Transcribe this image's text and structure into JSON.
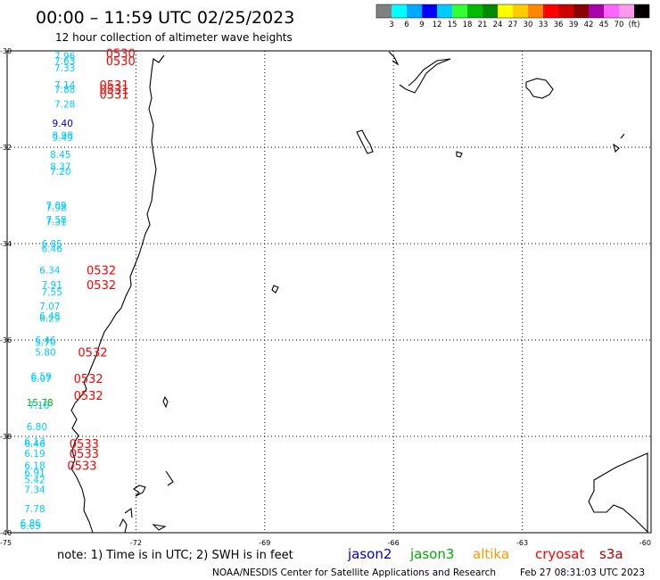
{
  "chart_data": {
    "type": "scatter",
    "title": "00:00 – 11:59 UTC 02/25/2023",
    "subtitle": "12 hour collection of altimeter wave heights",
    "xlim": [
      -75,
      -60
    ],
    "ylim": [
      -40,
      -30
    ],
    "x_ticks": [
      "-75",
      "-72",
      "-69",
      "-66",
      "-63",
      "-60"
    ],
    "y_ticks": [
      "-30",
      "-32",
      "-34",
      "-36",
      "-38",
      "-40"
    ],
    "x_tick_values": [
      -75,
      -72,
      -69,
      -66,
      -63,
      -60
    ],
    "y_tick_values": [
      -30,
      -32,
      -34,
      -36,
      -38,
      -40
    ],
    "grid": true,
    "colorbar": {
      "colors": [
        "#808080",
        "#00ffff",
        "#00aaff",
        "#0000ff",
        "#00ccff",
        "#33ff33",
        "#00bb00",
        "#008800",
        "#ffff00",
        "#ffcc00",
        "#ff8800",
        "#ff0000",
        "#cc0000",
        "#880000",
        "#aa00aa",
        "#ff66ff",
        "#ff99ee",
        "#000000"
      ],
      "labels": [
        "3",
        "6",
        "9",
        "12",
        "15",
        "18",
        "21",
        "24",
        "27",
        "30",
        "33",
        "36",
        "39",
        "42",
        "45",
        "70",
        "(ft)"
      ]
    },
    "series": [
      {
        "name": "cryosat",
        "color": "#00ccff",
        "points": [
          {
            "x": -73.9,
            "y": -30.1,
            "label": "7.96"
          },
          {
            "x": -73.9,
            "y": -30.2,
            "label": "7.63"
          },
          {
            "x": -73.9,
            "y": -30.35,
            "label": "7.33"
          },
          {
            "x": -73.9,
            "y": -30.7,
            "label": "7.14"
          },
          {
            "x": -73.9,
            "y": -30.8,
            "label": "7.88"
          },
          {
            "x": -73.9,
            "y": -31.1,
            "label": "7.28"
          },
          {
            "x": -73.95,
            "y": -31.75,
            "label": "8.98"
          },
          {
            "x": -73.95,
            "y": -31.8,
            "label": "9.49"
          },
          {
            "x": -74.0,
            "y": -32.15,
            "label": "8.45"
          },
          {
            "x": -74.0,
            "y": -32.4,
            "label": "8.37"
          },
          {
            "x": -74.0,
            "y": -32.5,
            "label": "7.20"
          },
          {
            "x": -74.1,
            "y": -33.2,
            "label": "7.89"
          },
          {
            "x": -74.1,
            "y": -33.25,
            "label": "7.98"
          },
          {
            "x": -74.1,
            "y": -33.5,
            "label": "7.58"
          },
          {
            "x": -74.1,
            "y": -33.55,
            "label": "7.31"
          },
          {
            "x": -74.2,
            "y": -34.0,
            "label": "6.85"
          },
          {
            "x": -74.2,
            "y": -34.1,
            "label": "6.46"
          },
          {
            "x": -74.25,
            "y": -34.55,
            "label": "6.34"
          },
          {
            "x": -74.2,
            "y": -34.85,
            "label": "7.91"
          },
          {
            "x": -74.2,
            "y": -35.0,
            "label": "7.55"
          },
          {
            "x": -74.25,
            "y": -35.3,
            "label": "7.07"
          },
          {
            "x": -74.25,
            "y": -35.5,
            "label": "6.48"
          },
          {
            "x": -74.25,
            "y": -35.55,
            "label": "6.29"
          },
          {
            "x": -74.35,
            "y": -36.0,
            "label": "6.46"
          },
          {
            "x": -74.35,
            "y": -36.05,
            "label": "5.70"
          },
          {
            "x": -74.35,
            "y": -36.25,
            "label": "5.80"
          },
          {
            "x": -74.45,
            "y": -36.75,
            "label": "6.59"
          },
          {
            "x": -74.45,
            "y": -36.8,
            "label": "6.07"
          },
          {
            "x": -74.5,
            "y": -37.35,
            "label": "7.16"
          },
          {
            "x": -74.55,
            "y": -37.8,
            "label": "6.80"
          },
          {
            "x": -74.6,
            "y": -38.1,
            "label": "6.13"
          },
          {
            "x": -74.6,
            "y": -38.15,
            "label": "6.46"
          },
          {
            "x": -74.6,
            "y": -38.35,
            "label": "6.19"
          },
          {
            "x": -74.6,
            "y": -38.6,
            "label": "6.18"
          },
          {
            "x": -74.6,
            "y": -38.75,
            "label": "6.91"
          },
          {
            "x": -74.6,
            "y": -38.9,
            "label": "5.42"
          },
          {
            "x": -74.6,
            "y": -39.1,
            "label": "7.34"
          },
          {
            "x": -74.6,
            "y": -39.5,
            "label": "7.78"
          },
          {
            "x": -74.7,
            "y": -39.8,
            "label": "6.86"
          },
          {
            "x": -74.7,
            "y": -39.85,
            "label": "6.65"
          }
        ]
      },
      {
        "name": "jason2",
        "color": "#0000cc",
        "points": [
          {
            "x": -73.95,
            "y": -31.5,
            "label": "9.40"
          }
        ]
      },
      {
        "name": "jason3",
        "color": "#00bb00",
        "points": [
          {
            "x": -74.55,
            "y": -37.3,
            "label": "15.78"
          }
        ]
      }
    ],
    "pass_times": [
      {
        "x": -72.7,
        "y": -30.05,
        "label": "0530"
      },
      {
        "x": -72.7,
        "y": -30.2,
        "label": "0530"
      },
      {
        "x": -72.85,
        "y": -30.7,
        "label": "0531"
      },
      {
        "x": -72.85,
        "y": -30.8,
        "label": "0531"
      },
      {
        "x": -72.85,
        "y": -30.9,
        "label": "0531"
      },
      {
        "x": -73.15,
        "y": -34.55,
        "label": "0532"
      },
      {
        "x": -73.15,
        "y": -34.85,
        "label": "0532"
      },
      {
        "x": -73.35,
        "y": -36.25,
        "label": "0532"
      },
      {
        "x": -73.45,
        "y": -36.8,
        "label": "0532"
      },
      {
        "x": -73.45,
        "y": -37.15,
        "label": "0532"
      },
      {
        "x": -73.55,
        "y": -38.15,
        "label": "0533"
      },
      {
        "x": -73.55,
        "y": -38.35,
        "label": "0533"
      },
      {
        "x": -73.6,
        "y": -38.6,
        "label": "0533"
      }
    ]
  },
  "footer": {
    "note": "note:  1) Time is in UTC;  2) SWH is in feet",
    "credit": "NOAA/NESDIS Center for Satellite Applications and Research",
    "timestamp": "Feb 27 08:31:03 UTC 2023",
    "missions": [
      {
        "name": "jason2",
        "color": "#0000cc"
      },
      {
        "name": "jason3",
        "color": "#00aa00"
      },
      {
        "name": "altika",
        "color": "#ff9900"
      },
      {
        "name": "cryosat",
        "color": "#ff0000"
      },
      {
        "name": "s3a",
        "color": "#aa0000"
      }
    ]
  }
}
